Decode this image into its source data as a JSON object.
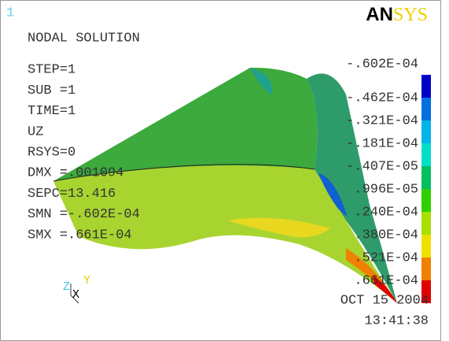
{
  "window_number": "1",
  "logo": {
    "prefix": "AN",
    "suffix": "SYS"
  },
  "info": [
    "NODAL SOLUTION",
    "STEP=1",
    "SUB =1",
    "TIME=1",
    "UZ",
    "RSYS=0",
    "DMX =.001094",
    "SEPC=13.416",
    "SMN =-.602E-04",
    "SMX =.661E-04"
  ],
  "legend": {
    "labels": [
      "-.602E-04",
      "-.462E-04",
      "-.321E-04",
      "-.181E-04",
      "-.407E-05",
      ".996E-05",
      ".240E-04",
      ".380E-04",
      ".521E-04",
      ".661E-04"
    ],
    "colors": [
      "#0000c8",
      "#0070e0",
      "#00b4e8",
      "#00e0c8",
      "#00c060",
      "#30d000",
      "#a8e000",
      "#f0e000",
      "#f08000",
      "#e00000"
    ]
  },
  "triad": [
    "Z",
    "X",
    "Y"
  ],
  "date": "OCT 15 2004",
  "time": "13:41:38"
}
